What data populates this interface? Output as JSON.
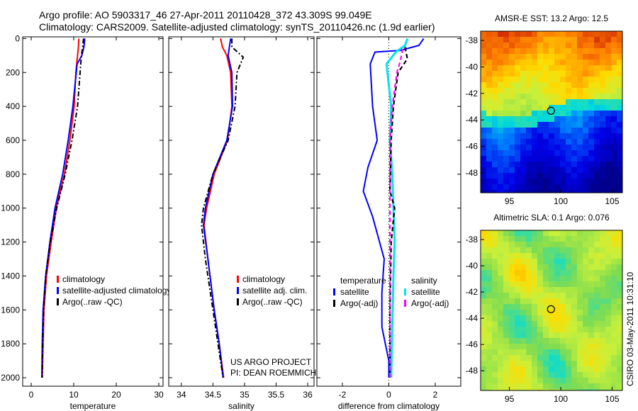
{
  "header": {
    "line1": "Argo profile: AO 5903317_46 27-Apr-2011 20110428_372 43.309S 99.049E",
    "line2": "Climatology: CARS2009. Satellite-adjusted climatology: synTS_20110426.nc (1.9d earlier)"
  },
  "credit": "CSIRO 03-May-2011 10:31:10",
  "colors": {
    "red": "#ff0000",
    "blue": "#0000ff",
    "black": "#000000",
    "cyan": "#00e5ee",
    "magenta": "#ff00ff"
  },
  "chart_data": [
    {
      "type": "line",
      "xlabel": "temperature",
      "xlim": [
        -2,
        31
      ],
      "ylim": [
        2050,
        -10
      ],
      "xticks": [
        0,
        10,
        20,
        30
      ],
      "yticks": [
        0,
        200,
        400,
        600,
        800,
        1000,
        1200,
        1400,
        1600,
        1800,
        2000
      ],
      "series": [
        {
          "name": "climatology",
          "color": "red",
          "dash": "",
          "width": 2,
          "x": [
            11.2,
            11.1,
            10.9,
            10.5,
            10.1,
            9.1,
            7.8,
            5.9,
            4.7,
            3.6,
            3.0,
            2.8,
            2.6
          ],
          "y": [
            0,
            50,
            100,
            200,
            400,
            600,
            800,
            1000,
            1200,
            1400,
            1600,
            1800,
            2000
          ]
        },
        {
          "name": "satellite-adjusted climatology",
          "color": "blue",
          "dash": "",
          "width": 2,
          "x": [
            12.6,
            12.4,
            11.9,
            10.8,
            9.8,
            8.7,
            7.4,
            5.6,
            4.4,
            3.4,
            2.8,
            2.6,
            2.5
          ],
          "y": [
            0,
            50,
            100,
            150,
            400,
            600,
            800,
            1000,
            1200,
            1400,
            1600,
            1800,
            2000
          ]
        },
        {
          "name": "Argo(..raw -QC)",
          "color": "black",
          "dash": "7,3,2,3",
          "width": 2,
          "x": [
            12.3,
            12.1,
            11.8,
            11.5,
            10.9,
            9.6,
            8.0,
            6.0,
            4.5,
            3.4,
            2.9,
            2.7,
            2.6
          ],
          "y": [
            0,
            50,
            100,
            200,
            400,
            600,
            800,
            1000,
            1200,
            1400,
            1600,
            1800,
            2000
          ]
        }
      ],
      "legend_title": [],
      "legend": [
        {
          "label": "climatology",
          "color": "red"
        },
        {
          "label": "satellite-adjusted climatology",
          "color": "blue"
        },
        {
          "label": "Argo(..raw -QC)",
          "color": "black"
        }
      ],
      "annotations": []
    },
    {
      "type": "line",
      "xlabel": "salinity",
      "xlim": [
        33.8,
        36.1
      ],
      "ylim": [
        2050,
        -10
      ],
      "xticks": [
        34,
        34.5,
        35,
        35.5,
        36
      ],
      "yticks": [
        0,
        200,
        400,
        600,
        800,
        1000,
        1200,
        1400,
        1600,
        1800,
        2000
      ],
      "series": [
        {
          "name": "climatology",
          "color": "red",
          "dash": "",
          "width": 2,
          "x": [
            34.62,
            34.65,
            34.72,
            34.78,
            34.8,
            34.73,
            34.52,
            34.4,
            34.36,
            34.42,
            34.52,
            34.6,
            34.67
          ],
          "y": [
            0,
            50,
            100,
            200,
            400,
            600,
            800,
            1000,
            1100,
            1300,
            1600,
            1800,
            2000
          ]
        },
        {
          "name": "satellite adj. clim.",
          "color": "blue",
          "dash": "",
          "width": 2,
          "x": [
            34.78,
            34.76,
            34.74,
            34.8,
            34.81,
            34.72,
            34.5,
            34.38,
            34.35,
            34.42,
            34.52,
            34.6,
            34.66
          ],
          "y": [
            0,
            50,
            100,
            200,
            400,
            600,
            800,
            1000,
            1100,
            1300,
            1600,
            1800,
            2000
          ]
        },
        {
          "name": "Argo(..raw -QC)",
          "color": "black",
          "dash": "7,3,2,3",
          "width": 2,
          "x": [
            34.8,
            34.8,
            34.98,
            34.88,
            34.85,
            34.74,
            34.5,
            34.35,
            34.32,
            34.38,
            34.5,
            34.58,
            34.66
          ],
          "y": [
            0,
            50,
            110,
            200,
            400,
            600,
            800,
            1000,
            1100,
            1300,
            1600,
            1800,
            2000
          ]
        }
      ],
      "legend_title": [],
      "legend": [
        {
          "label": "climatology",
          "color": "red"
        },
        {
          "label": "satellite adj. clim.",
          "color": "blue"
        },
        {
          "label": "Argo(..raw -QC)",
          "color": "black"
        }
      ],
      "annotations": [
        "US ARGO PROJECT",
        "PI: DEAN ROEMMICH"
      ]
    },
    {
      "type": "line",
      "xlabel": "difference from climatology",
      "xlim": [
        -3.1,
        3.1
      ],
      "ylim": [
        2050,
        -10
      ],
      "xticks": [
        -2,
        0,
        2
      ],
      "yticks": [
        0,
        200,
        400,
        600,
        800,
        1000,
        1200,
        1400,
        1600,
        1800,
        2000
      ],
      "series": [
        {
          "name": "temperature satellite",
          "color": "blue",
          "dash": "",
          "width": 2,
          "x": [
            1.5,
            1.3,
            0.5,
            -0.6,
            -0.8,
            -0.7,
            -0.5,
            -0.9,
            -1.1,
            -0.7,
            -0.2,
            -0.3,
            -0.3,
            0,
            0
          ],
          "y": [
            0,
            40,
            70,
            80,
            150,
            400,
            600,
            760,
            900,
            1050,
            1300,
            1500,
            1700,
            1900,
            2000
          ]
        },
        {
          "name": "salinity satellite",
          "color": "cyan",
          "dash": "",
          "width": 3,
          "x": [
            0.8,
            0.7,
            0.3,
            -0.1,
            0.1,
            0.05,
            0.15,
            0.2,
            0.25,
            0.2,
            0.15,
            0.1
          ],
          "y": [
            0,
            40,
            80,
            150,
            400,
            600,
            800,
            1000,
            1200,
            1400,
            1700,
            2000
          ]
        },
        {
          "name": "temperature Argo(-adj)",
          "color": "black",
          "dash": "6,4",
          "width": 2.2,
          "x": [
            0.7,
            0.8,
            0.4,
            0.2,
            0.1,
            0.05,
            0.25,
            0.1,
            0.05,
            0.05
          ],
          "y": [
            50,
            120,
            200,
            400,
            600,
            900,
            1000,
            1200,
            1600,
            2000
          ]
        },
        {
          "name": "salinity Argo(-adj)",
          "color": "magenta",
          "dash": "6,4",
          "width": 2.2,
          "x": [
            0.6,
            0.5,
            0.35,
            0.15,
            0.05,
            0.05,
            0.05,
            0.05
          ],
          "y": [
            60,
            130,
            200,
            400,
            600,
            900,
            1400,
            2000
          ]
        }
      ],
      "legend_title": [
        "temperature",
        "salinity"
      ],
      "legend": [
        {
          "label": "satellite",
          "color": "blue",
          "col": 0
        },
        {
          "label": "Argo(-adj)",
          "color": "black",
          "col": 0
        },
        {
          "label": "satellite",
          "color": "cyan",
          "col": 1
        },
        {
          "label": "Argo(-adj)",
          "color": "magenta",
          "col": 1
        }
      ],
      "annotations": []
    },
    {
      "type": "heatmap",
      "title": "AMSR-E SST: 13.2  Argo: 12.5",
      "variable": "SST",
      "xlim": [
        92.2,
        106
      ],
      "ylim": [
        -49.5,
        -37.3
      ],
      "xticks": [
        95,
        100,
        105
      ],
      "yticks": [
        -38,
        -40,
        -42,
        -44,
        -46,
        -48
      ],
      "argo_marker": {
        "lon": 99.049,
        "lat": -43.309
      }
    },
    {
      "type": "heatmap",
      "title": "Altimetric SLA: 0.1  Argo: 0.076",
      "variable": "SLA",
      "xlim": [
        92.2,
        106
      ],
      "ylim": [
        -49.5,
        -37.3
      ],
      "xticks": [
        95,
        100,
        105
      ],
      "yticks": [
        -38,
        -40,
        -42,
        -44,
        -46,
        -48
      ],
      "argo_marker": {
        "lon": 99.049,
        "lat": -43.309
      }
    }
  ]
}
